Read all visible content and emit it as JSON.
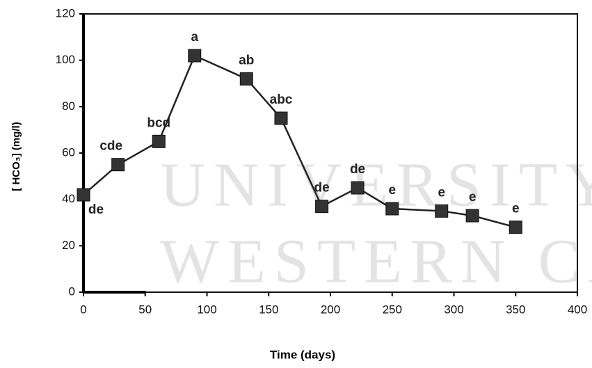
{
  "chart_data": {
    "type": "line",
    "x_label": "Time (days)",
    "y_label": "[ HCO₃] (mg/l)",
    "watermark": [
      "UNIVERSITY of",
      "WESTERN CA"
    ],
    "x": [
      0,
      28,
      61,
      90,
      132,
      160,
      193,
      222,
      250,
      290,
      315,
      350
    ],
    "series": [
      {
        "name": "HCO3",
        "color": "#333333",
        "values": [
          42,
          55,
          65,
          102,
          92,
          75,
          37,
          45,
          36,
          35,
          33,
          28
        ]
      }
    ],
    "point_labels": [
      "de",
      "cde",
      "bcd",
      "a",
      "ab",
      "abc",
      "de",
      "de",
      "e",
      "e",
      "e",
      "e"
    ],
    "xlim": [
      0,
      400
    ],
    "xticks": [
      0,
      50,
      100,
      150,
      200,
      250,
      300,
      350,
      400
    ],
    "ylim": [
      0,
      120
    ],
    "yticks": [
      0,
      20,
      40,
      60,
      80,
      100,
      120
    ]
  }
}
